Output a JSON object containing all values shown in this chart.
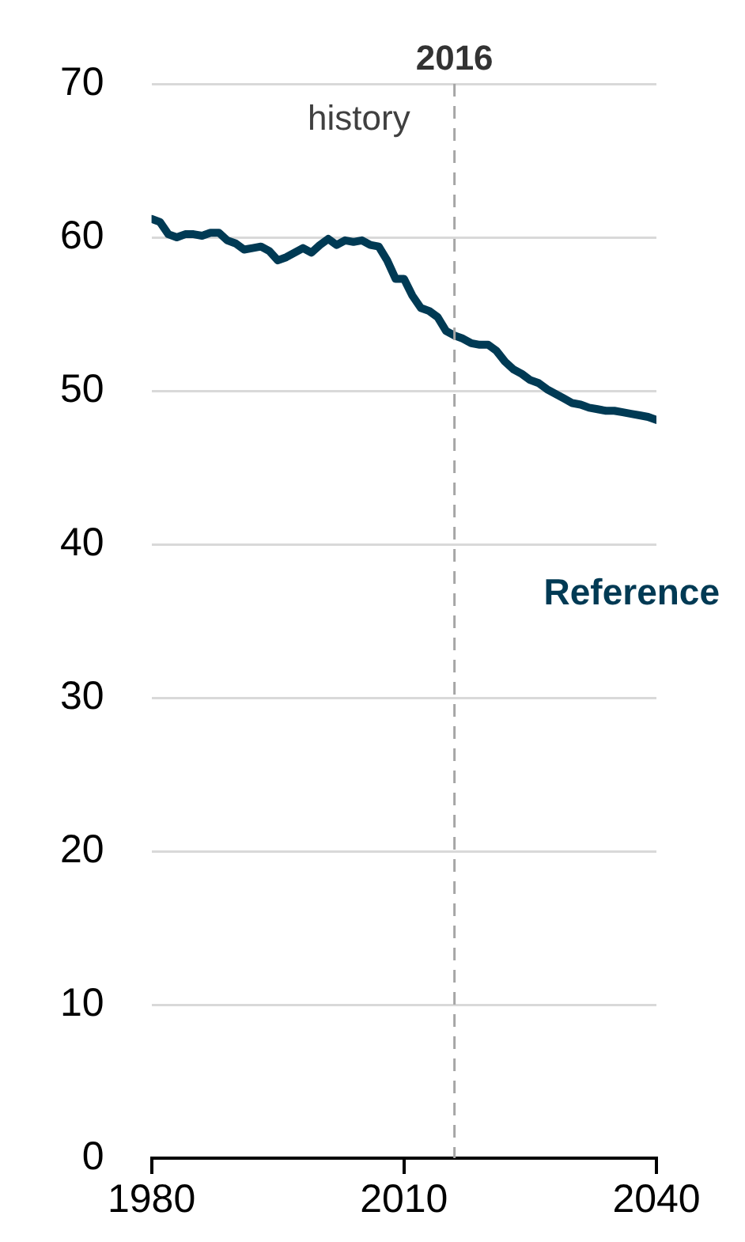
{
  "chart_data": {
    "type": "line",
    "x": [
      1980,
      1981,
      1982,
      1983,
      1984,
      1985,
      1986,
      1987,
      1988,
      1989,
      1990,
      1991,
      1992,
      1993,
      1994,
      1995,
      1996,
      1997,
      1998,
      1999,
      2000,
      2001,
      2002,
      2003,
      2004,
      2005,
      2006,
      2007,
      2008,
      2009,
      2010,
      2011,
      2012,
      2013,
      2014,
      2015,
      2016,
      2017,
      2018,
      2019,
      2020,
      2021,
      2022,
      2023,
      2024,
      2025,
      2026,
      2027,
      2028,
      2029,
      2030,
      2031,
      2032,
      2033,
      2034,
      2035,
      2036,
      2037,
      2038,
      2039,
      2040
    ],
    "series": [
      {
        "name": "Reference",
        "color": "#003a54",
        "values": [
          61.2,
          61.0,
          60.2,
          60.0,
          60.2,
          60.2,
          60.1,
          60.3,
          60.3,
          59.8,
          59.6,
          59.2,
          59.3,
          59.4,
          59.1,
          58.5,
          58.7,
          59.0,
          59.3,
          59.0,
          59.5,
          59.9,
          59.5,
          59.8,
          59.7,
          59.8,
          59.5,
          59.4,
          58.5,
          57.3,
          57.3,
          56.2,
          55.4,
          55.2,
          54.8,
          53.9,
          53.6,
          53.4,
          53.1,
          53.0,
          53.0,
          52.6,
          51.9,
          51.4,
          51.1,
          50.7,
          50.5,
          50.1,
          49.8,
          49.5,
          49.2,
          49.1,
          48.9,
          48.8,
          48.7,
          48.7,
          48.6,
          48.5,
          48.4,
          48.3,
          48.1
        ]
      }
    ],
    "xlim": [
      1980,
      2040
    ],
    "xticks": [
      1980,
      2010,
      2040
    ],
    "ylim": [
      0,
      70
    ],
    "yticks": [
      0,
      10,
      20,
      30,
      40,
      50,
      60,
      70
    ],
    "grid": "y",
    "legend": false,
    "marker": "none",
    "line_style": "solid",
    "ref_lines": [
      {
        "axis": "x",
        "value": 2016,
        "label": "2016",
        "color": "#a6a6a6",
        "line_style": "dashed"
      }
    ],
    "annotations": [
      "history"
    ]
  }
}
